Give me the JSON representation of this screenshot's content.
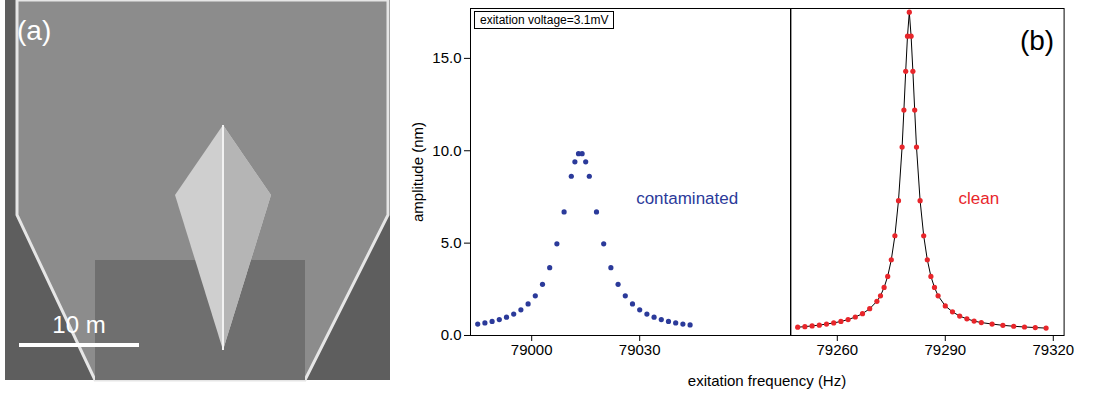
{
  "image_panel": {
    "label": "(a)",
    "scale_bar_label": "10 m"
  },
  "chart_data": [
    {
      "type": "line",
      "marker": "circle",
      "xlabel": "exitation frequency (Hz)",
      "ylabel": "amplitude (nm)",
      "annotation": "exitation voltage=3.1mV",
      "xlim": [
        78983,
        79072
      ],
      "xticks": [
        79000,
        79030
      ],
      "ylim": [
        0,
        17.7
      ],
      "yticks": [
        {
          "value": 0,
          "label": "0.0"
        },
        {
          "value": 5,
          "label": "5.0"
        },
        {
          "value": 10,
          "label": "10.0"
        },
        {
          "value": 15,
          "label": "15.0"
        }
      ],
      "x": [
        78985,
        78987,
        78989,
        78991,
        78993,
        78995,
        78997,
        78999,
        79001,
        79003,
        79005,
        79007,
        79009,
        79011,
        79012,
        79013,
        79014,
        79015,
        79016,
        79018,
        79020,
        79022,
        79024,
        79026,
        79028,
        79030,
        79032,
        79034,
        79036,
        79038,
        79040,
        79042,
        79044
      ],
      "series": [
        {
          "name": "contaminated",
          "color": "#2b3a9a",
          "line_style": "none",
          "values": [
            0.62,
            0.68,
            0.76,
            0.86,
            0.99,
            1.16,
            1.39,
            1.71,
            2.15,
            2.77,
            3.67,
            4.96,
            6.69,
            8.62,
            9.4,
            9.84,
            9.84,
            9.4,
            8.62,
            6.69,
            4.96,
            3.67,
            2.77,
            2.15,
            1.71,
            1.39,
            1.16,
            0.99,
            0.86,
            0.76,
            0.68,
            0.62,
            0.57
          ]
        }
      ]
    },
    {
      "type": "line",
      "marker": "circle",
      "tick_labels": "x",
      "panel_label": "(b)",
      "xlim": [
        79247,
        79323
      ],
      "xticks": [
        79260,
        79290,
        79320
      ],
      "ylim": [
        0,
        17.7
      ],
      "x": [
        79249,
        79251,
        79253,
        79255,
        79257,
        79259,
        79261,
        79263,
        79265,
        79267,
        79269,
        79271,
        79272,
        79273,
        79274,
        79275,
        79276,
        79277,
        79278,
        79278.5,
        79279,
        79279.5,
        79280,
        79280.5,
        79281,
        79281.5,
        79282,
        79283,
        79284,
        79285,
        79286,
        79287,
        79288,
        79290,
        79292,
        79294,
        79296,
        79298,
        79300,
        79303,
        79306,
        79309,
        79312,
        79315,
        79318
      ],
      "series": [
        {
          "name": "clean",
          "color": "#e8262b",
          "line_style": "solid",
          "values": [
            0.45,
            0.48,
            0.52,
            0.56,
            0.62,
            0.68,
            0.76,
            0.86,
            1.0,
            1.18,
            1.45,
            1.85,
            2.15,
            2.6,
            3.2,
            4.1,
            5.4,
            7.3,
            10.2,
            12.2,
            14.3,
            16.2,
            17.5,
            16.2,
            14.3,
            12.2,
            10.2,
            7.3,
            5.4,
            4.1,
            3.2,
            2.6,
            2.15,
            1.6,
            1.28,
            1.05,
            0.9,
            0.78,
            0.7,
            0.62,
            0.55,
            0.5,
            0.46,
            0.43,
            0.4
          ]
        }
      ]
    }
  ]
}
